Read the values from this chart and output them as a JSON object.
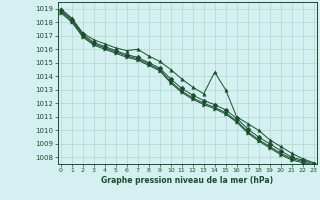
{
  "title": "Graphe pression niveau de la mer (hPa)",
  "bg_color": "#d4f0f0",
  "grid_color": "#b0d8cc",
  "line_color": "#1a4d2e",
  "ylim": [
    1007.5,
    1019.5
  ],
  "xlim": [
    0,
    23
  ],
  "yticks": [
    1008,
    1009,
    1010,
    1011,
    1012,
    1013,
    1014,
    1015,
    1016,
    1017,
    1018,
    1019
  ],
  "xticks": [
    0,
    1,
    2,
    3,
    4,
    5,
    6,
    7,
    8,
    9,
    10,
    11,
    12,
    13,
    14,
    15,
    16,
    17,
    18,
    19,
    20,
    21,
    22,
    23
  ],
  "series": [
    [
      1019.0,
      1018.3,
      1017.2,
      1016.7,
      1016.4,
      1016.1,
      1015.9,
      1016.0,
      1015.5,
      1015.1,
      1014.5,
      1013.8,
      1013.2,
      1012.7,
      1014.3,
      1013.0,
      1011.0,
      1010.5,
      1010.0,
      1009.3,
      1008.8,
      1008.3,
      1007.9,
      1007.6
    ],
    [
      1018.9,
      1018.2,
      1017.1,
      1016.5,
      1016.2,
      1015.9,
      1015.6,
      1015.4,
      1015.0,
      1014.6,
      1013.8,
      1013.1,
      1012.6,
      1012.2,
      1011.9,
      1011.5,
      1010.9,
      1010.1,
      1009.5,
      1009.0,
      1008.5,
      1008.0,
      1007.8,
      1007.5
    ],
    [
      1018.8,
      1018.1,
      1017.0,
      1016.4,
      1016.1,
      1015.8,
      1015.5,
      1015.3,
      1014.9,
      1014.5,
      1013.6,
      1012.9,
      1012.4,
      1012.0,
      1011.7,
      1011.3,
      1010.7,
      1009.9,
      1009.3,
      1008.8,
      1008.3,
      1007.9,
      1007.7,
      1007.4
    ],
    [
      1018.7,
      1018.0,
      1016.9,
      1016.3,
      1016.0,
      1015.7,
      1015.4,
      1015.2,
      1014.8,
      1014.4,
      1013.5,
      1012.8,
      1012.3,
      1011.9,
      1011.6,
      1011.2,
      1010.6,
      1009.8,
      1009.2,
      1008.7,
      1008.2,
      1007.8,
      1007.6,
      1007.3
    ]
  ]
}
